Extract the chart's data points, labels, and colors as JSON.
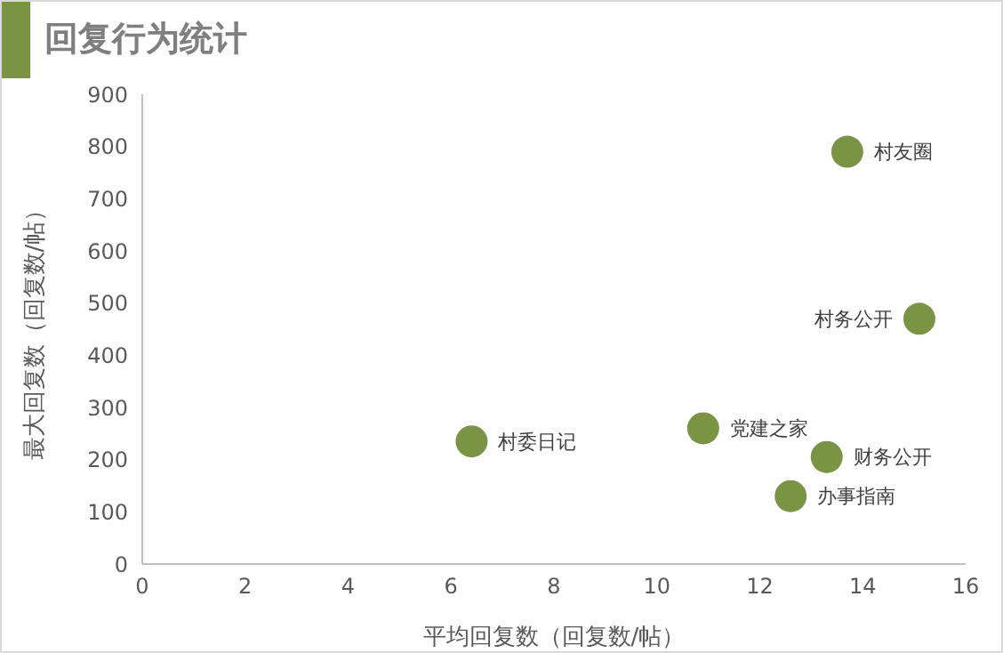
{
  "chart_data": {
    "type": "scatter",
    "title": "回复行为统计",
    "xlabel": "平均回复数（回复数/帖）",
    "ylabel": "最大回复数（回复数/帖）",
    "xlim": [
      0,
      16
    ],
    "xticks": [
      0,
      2,
      4,
      6,
      8,
      10,
      12,
      14,
      16
    ],
    "ylim": [
      0,
      900
    ],
    "yticks": [
      0,
      100,
      200,
      300,
      400,
      500,
      600,
      700,
      800,
      900
    ],
    "grid": false,
    "legend": false,
    "marker": "circle",
    "series": [
      {
        "name": "村友圈",
        "color": "#7a9446",
        "x": [
          13.7
        ],
        "values": [
          790
        ]
      },
      {
        "name": "村务公开",
        "color": "#7a9446",
        "x": [
          15.1
        ],
        "values": [
          470
        ]
      },
      {
        "name": "村委日记",
        "color": "#7a9446",
        "x": [
          6.4
        ],
        "values": [
          235
        ]
      },
      {
        "name": "党建之家",
        "color": "#7a9446",
        "x": [
          10.9
        ],
        "values": [
          260
        ]
      },
      {
        "name": "财务公开",
        "color": "#7a9446",
        "x": [
          13.3
        ],
        "values": [
          205
        ]
      },
      {
        "name": "办事指南",
        "color": "#7a9446",
        "x": [
          12.6
        ],
        "values": [
          130
        ]
      }
    ]
  }
}
